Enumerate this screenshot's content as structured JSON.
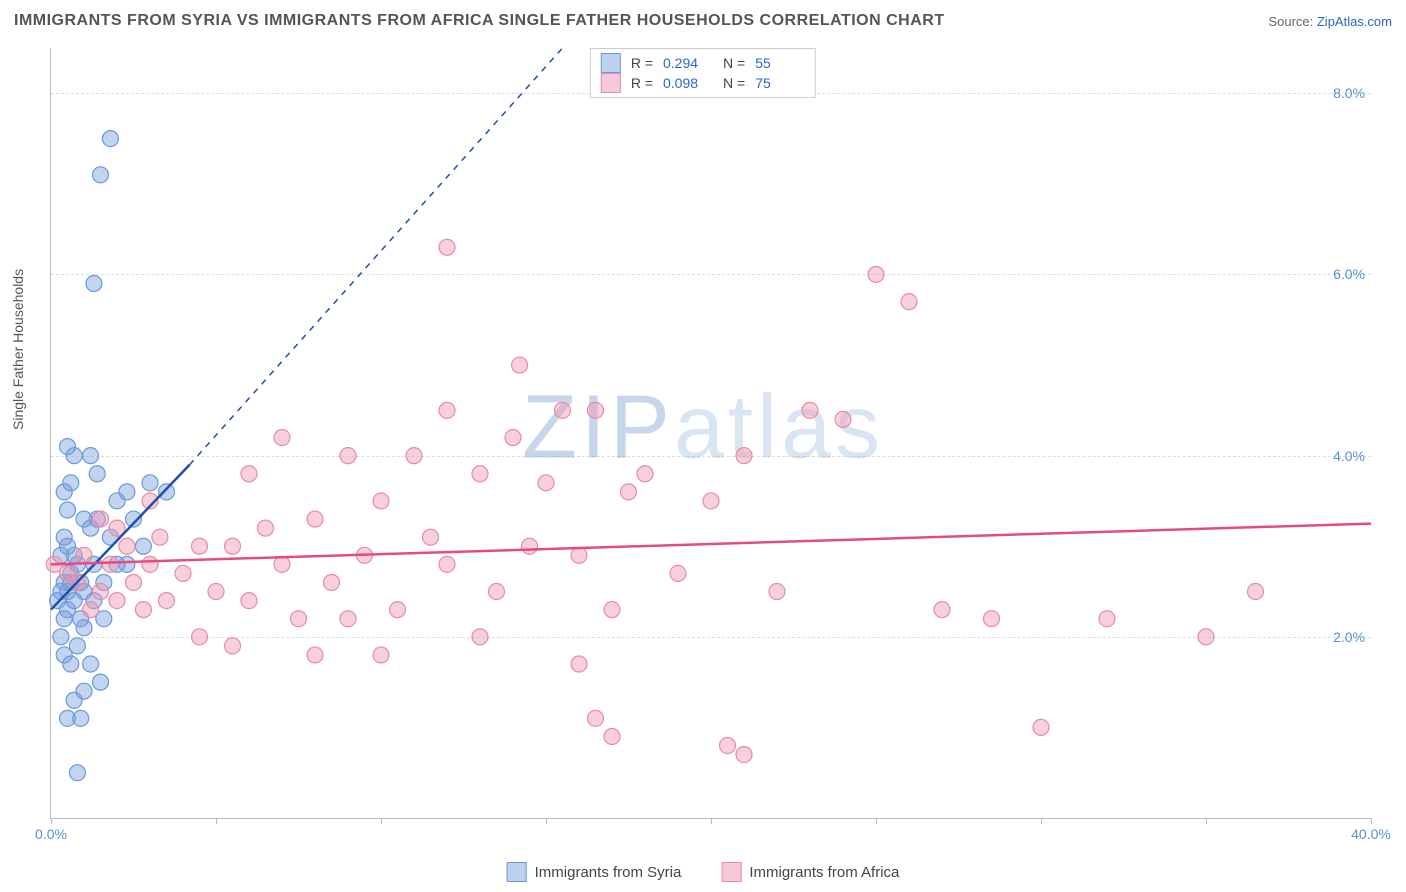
{
  "title": "IMMIGRANTS FROM SYRIA VS IMMIGRANTS FROM AFRICA SINGLE FATHER HOUSEHOLDS CORRELATION CHART",
  "source_prefix": "Source: ",
  "source_link": "ZipAtlas.com",
  "y_axis_label": "Single Father Households",
  "watermark_zip": "ZIP",
  "watermark_atlas": "atlas",
  "chart": {
    "type": "scatter",
    "xlim": [
      0,
      40
    ],
    "ylim": [
      0,
      8.5
    ],
    "y_ticks": [
      2.0,
      4.0,
      6.0,
      8.0
    ],
    "y_tick_labels": [
      "2.0%",
      "4.0%",
      "6.0%",
      "8.0%"
    ],
    "x_ticks": [
      0,
      5,
      10,
      15,
      20,
      25,
      30,
      35,
      40
    ],
    "x_tick_labels": [
      "0.0%",
      "",
      "",
      "",
      "",
      "",
      "",
      "",
      "40.0%"
    ],
    "background_color": "#ffffff",
    "grid_color": "#dddddd",
    "axis_color": "#bbbbbb",
    "tick_label_color": "#5b8fd6",
    "point_radius": 8,
    "point_opacity": 0.55,
    "watermark_color": "rgba(120,160,210,0.35)"
  },
  "series": [
    {
      "name": "Immigrants from Syria",
      "color_fill": "rgba(120,160,220,0.45)",
      "color_stroke": "#6a9ad8",
      "swatch_fill": "#bcd3f0",
      "swatch_border": "#6a9ad8",
      "trend_color": "#1f4fb0",
      "trend_dash_color": "#1f4fb0",
      "R": "0.294",
      "N": "55",
      "trend_x1": 0,
      "trend_y1": 2.3,
      "trend_x2": 4.2,
      "trend_y2": 3.9,
      "trend_dash_x2": 15.5,
      "trend_dash_y2": 8.5,
      "points": [
        [
          0.2,
          2.4
        ],
        [
          0.3,
          2.5
        ],
        [
          0.4,
          2.6
        ],
        [
          0.5,
          2.3
        ],
        [
          0.6,
          2.7
        ],
        [
          0.5,
          2.5
        ],
        [
          0.7,
          2.4
        ],
        [
          0.8,
          2.8
        ],
        [
          0.4,
          2.2
        ],
        [
          0.6,
          2.6
        ],
        [
          0.3,
          2.0
        ],
        [
          0.5,
          3.0
        ],
        [
          0.7,
          2.9
        ],
        [
          0.9,
          2.6
        ],
        [
          1.0,
          2.5
        ],
        [
          1.2,
          3.2
        ],
        [
          1.3,
          2.4
        ],
        [
          1.4,
          3.3
        ],
        [
          1.6,
          2.6
        ],
        [
          1.8,
          3.1
        ],
        [
          2.0,
          3.5
        ],
        [
          2.3,
          2.8
        ],
        [
          2.3,
          3.6
        ],
        [
          2.8,
          3.0
        ],
        [
          3.0,
          3.7
        ],
        [
          3.5,
          3.6
        ],
        [
          0.5,
          3.4
        ],
        [
          0.4,
          3.6
        ],
        [
          0.6,
          3.7
        ],
        [
          1.0,
          3.3
        ],
        [
          1.4,
          3.8
        ],
        [
          1.2,
          4.0
        ],
        [
          0.4,
          1.8
        ],
        [
          0.8,
          1.9
        ],
        [
          1.2,
          1.7
        ],
        [
          1.5,
          1.5
        ],
        [
          1.0,
          1.4
        ],
        [
          0.7,
          1.3
        ],
        [
          0.6,
          1.7
        ],
        [
          0.5,
          1.1
        ],
        [
          0.9,
          1.1
        ],
        [
          1.6,
          2.2
        ],
        [
          2.0,
          2.8
        ],
        [
          2.5,
          3.3
        ],
        [
          0.7,
          4.0
        ],
        [
          0.5,
          4.1
        ],
        [
          1.0,
          2.1
        ],
        [
          1.3,
          2.8
        ],
        [
          0.3,
          2.9
        ],
        [
          0.4,
          3.1
        ],
        [
          1.3,
          5.9
        ],
        [
          1.5,
          7.1
        ],
        [
          1.8,
          7.5
        ],
        [
          0.8,
          0.5
        ],
        [
          0.9,
          2.2
        ]
      ]
    },
    {
      "name": "Immigrants from Africa",
      "color_fill": "rgba(240,150,175,0.45)",
      "color_stroke": "#e88aa8",
      "swatch_fill": "#f7c9d8",
      "swatch_border": "#e88aa8",
      "trend_color": "#e54b82",
      "R": "0.098",
      "N": "75",
      "trend_x1": 0,
      "trend_y1": 2.8,
      "trend_x2": 40,
      "trend_y2": 3.25,
      "points": [
        [
          0.1,
          2.8
        ],
        [
          0.5,
          2.7
        ],
        [
          0.8,
          2.6
        ],
        [
          1.0,
          2.9
        ],
        [
          1.5,
          2.5
        ],
        [
          1.8,
          2.8
        ],
        [
          2.0,
          2.4
        ],
        [
          2.3,
          3.0
        ],
        [
          2.5,
          2.6
        ],
        [
          2.8,
          2.3
        ],
        [
          3.0,
          2.8
        ],
        [
          3.3,
          3.1
        ],
        [
          3.5,
          2.4
        ],
        [
          4.0,
          2.7
        ],
        [
          4.5,
          3.0
        ],
        [
          5.0,
          2.5
        ],
        [
          5.5,
          3.0
        ],
        [
          6.0,
          2.4
        ],
        [
          6.5,
          3.2
        ],
        [
          7.0,
          2.8
        ],
        [
          7.5,
          2.2
        ],
        [
          8.0,
          3.3
        ],
        [
          8.5,
          2.6
        ],
        [
          9.0,
          4.0
        ],
        [
          9.5,
          2.9
        ],
        [
          10.0,
          3.5
        ],
        [
          10.5,
          2.3
        ],
        [
          11.0,
          4.0
        ],
        [
          11.5,
          3.1
        ],
        [
          12.0,
          2.8
        ],
        [
          13.0,
          3.8
        ],
        [
          13.5,
          2.5
        ],
        [
          14.0,
          4.2
        ],
        [
          14.5,
          3.0
        ],
        [
          15.0,
          3.7
        ],
        [
          16.0,
          2.9
        ],
        [
          16.5,
          4.5
        ],
        [
          17.0,
          2.3
        ],
        [
          17.5,
          3.6
        ],
        [
          18.0,
          3.8
        ],
        [
          19.0,
          2.7
        ],
        [
          20.0,
          3.5
        ],
        [
          21.0,
          4.0
        ],
        [
          22.0,
          2.5
        ],
        [
          23.0,
          4.5
        ],
        [
          8.0,
          1.8
        ],
        [
          10.0,
          1.8
        ],
        [
          12.0,
          6.3
        ],
        [
          14.2,
          5.0
        ],
        [
          15.5,
          4.5
        ],
        [
          12.0,
          4.5
        ],
        [
          16.0,
          1.7
        ],
        [
          16.5,
          1.1
        ],
        [
          17.0,
          0.9
        ],
        [
          20.5,
          0.8
        ],
        [
          21.0,
          0.7
        ],
        [
          24.0,
          4.4
        ],
        [
          25.0,
          6.0
        ],
        [
          26.0,
          5.7
        ],
        [
          27.0,
          2.3
        ],
        [
          28.5,
          2.2
        ],
        [
          30.0,
          1.0
        ],
        [
          32.0,
          2.2
        ],
        [
          35.0,
          2.0
        ],
        [
          36.5,
          2.5
        ],
        [
          4.5,
          2.0
        ],
        [
          5.5,
          1.9
        ],
        [
          9.0,
          2.2
        ],
        [
          13.0,
          2.0
        ],
        [
          6.0,
          3.8
        ],
        [
          7.0,
          4.2
        ],
        [
          3.0,
          3.5
        ],
        [
          2.0,
          3.2
        ],
        [
          1.5,
          3.3
        ],
        [
          1.2,
          2.3
        ]
      ]
    }
  ],
  "legend_top_labels": {
    "R": "R =",
    "N": "N ="
  },
  "legend_bottom": [
    {
      "label": "Immigrants from Syria"
    },
    {
      "label": "Immigrants from Africa"
    }
  ]
}
